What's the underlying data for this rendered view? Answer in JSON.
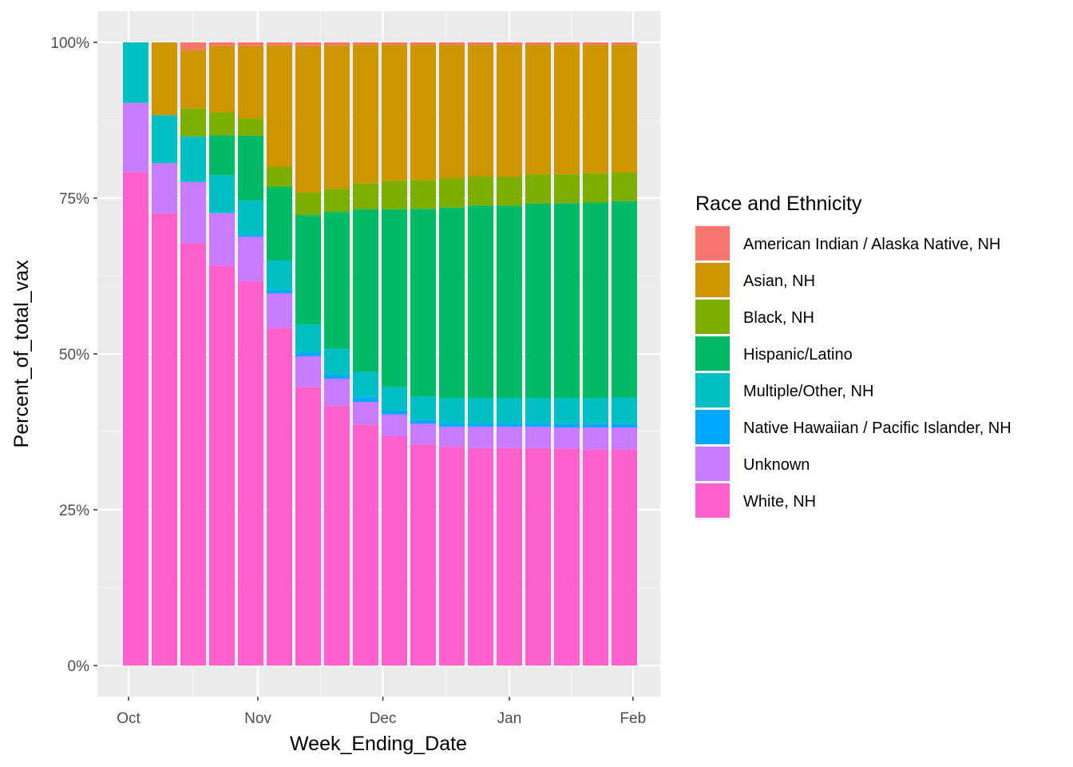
{
  "chart_data": {
    "type": "bar",
    "stacked": true,
    "position": "fill",
    "title": "",
    "xlabel": "Week_Ending_Date",
    "ylabel": "Percent_of_total_vax",
    "ylim": [
      0,
      100
    ],
    "y_ticks": [
      0,
      25,
      50,
      75,
      100
    ],
    "y_tick_labels": [
      "0%",
      "25%",
      "50%",
      "75%",
      "100%"
    ],
    "x_tick_labels": [
      "Oct",
      "Nov",
      "Dec",
      "Jan",
      "Feb"
    ],
    "x_tick_positions_week_index": [
      -0.25,
      4.25,
      8.6,
      13.0,
      17.3
    ],
    "grid": true,
    "legend": {
      "title": "Race and Ethnicity",
      "placement": "right"
    },
    "categories": [
      "W1",
      "W2",
      "W3",
      "W4",
      "W5",
      "W6",
      "W7",
      "W8",
      "W9",
      "W10",
      "W11",
      "W12",
      "W13",
      "W14",
      "W15",
      "W16",
      "W17",
      "W18"
    ],
    "series": [
      {
        "name": "White, NH",
        "color": "#FF61CC",
        "values": [
          79.2,
          72.6,
          67.8,
          64.2,
          61.7,
          54.2,
          44.7,
          41.7,
          38.7,
          36.8,
          35.5,
          35.1,
          34.9,
          34.9,
          34.9,
          34.8,
          34.7,
          34.7
        ]
      },
      {
        "name": "Unknown",
        "color": "#C77CFF",
        "values": [
          11.1,
          8.0,
          9.8,
          8.4,
          7.1,
          5.5,
          4.9,
          4.3,
          3.6,
          3.5,
          3.3,
          3.2,
          3.4,
          3.4,
          3.4,
          3.4,
          3.5,
          3.5
        ]
      },
      {
        "name": "Native Hawaiian / Pacific Islander, NH",
        "color": "#00A9FF",
        "values": [
          0,
          0,
          0,
          0,
          0.4,
          0.6,
          0.7,
          0.7,
          0.8,
          0.6,
          0.6,
          0.6,
          0.6,
          0.6,
          0.6,
          0.6,
          0.6,
          0.6
        ]
      },
      {
        "name": "Multiple/Other, NH",
        "color": "#00BFC4",
        "values": [
          9.7,
          7.7,
          7.3,
          6.1,
          5.4,
          4.7,
          4.4,
          4.1,
          4.0,
          3.8,
          3.8,
          4.0,
          4.0,
          4.0,
          4.0,
          4.1,
          4.1,
          4.2
        ]
      },
      {
        "name": "Hispanic/Latino",
        "color": "#00BA68",
        "values": [
          0,
          0,
          0,
          6.4,
          10.4,
          11.8,
          17.6,
          22.0,
          26.1,
          28.5,
          30.1,
          30.6,
          30.9,
          30.9,
          31.2,
          31.3,
          31.4,
          31.5
        ]
      },
      {
        "name": "Black, NH",
        "color": "#7CAE00",
        "values": [
          0,
          0,
          4.5,
          3.7,
          2.8,
          3.2,
          3.6,
          3.7,
          4.2,
          4.6,
          4.6,
          4.7,
          4.7,
          4.6,
          4.7,
          4.6,
          4.7,
          4.6
        ]
      },
      {
        "name": "Asian, NH",
        "color": "#CD9600",
        "values": [
          0,
          11.7,
          9.4,
          10.6,
          11.6,
          19.5,
          23.5,
          23.0,
          22.2,
          21.8,
          21.7,
          21.4,
          21.1,
          21.2,
          20.8,
          20.8,
          20.6,
          20.5
        ]
      },
      {
        "name": "American Indian / Alaska Native, NH",
        "color": "#F8766D",
        "values": [
          0,
          0,
          1.2,
          0.6,
          0.6,
          0.5,
          0.6,
          0.5,
          0.4,
          0.4,
          0.4,
          0.4,
          0.4,
          0.4,
          0.4,
          0.4,
          0.4,
          0.4
        ]
      }
    ],
    "legend_order": [
      "American Indian / Alaska Native, NH",
      "Asian, NH",
      "Black, NH",
      "Hispanic/Latino",
      "Multiple/Other, NH",
      "Native Hawaiian / Pacific Islander, NH",
      "Unknown",
      "White, NH"
    ],
    "colors": {
      "panel_background": "#EBEBEB",
      "grid_major": "#FFFFFF",
      "grid_minor": "#F5F5F5"
    }
  }
}
